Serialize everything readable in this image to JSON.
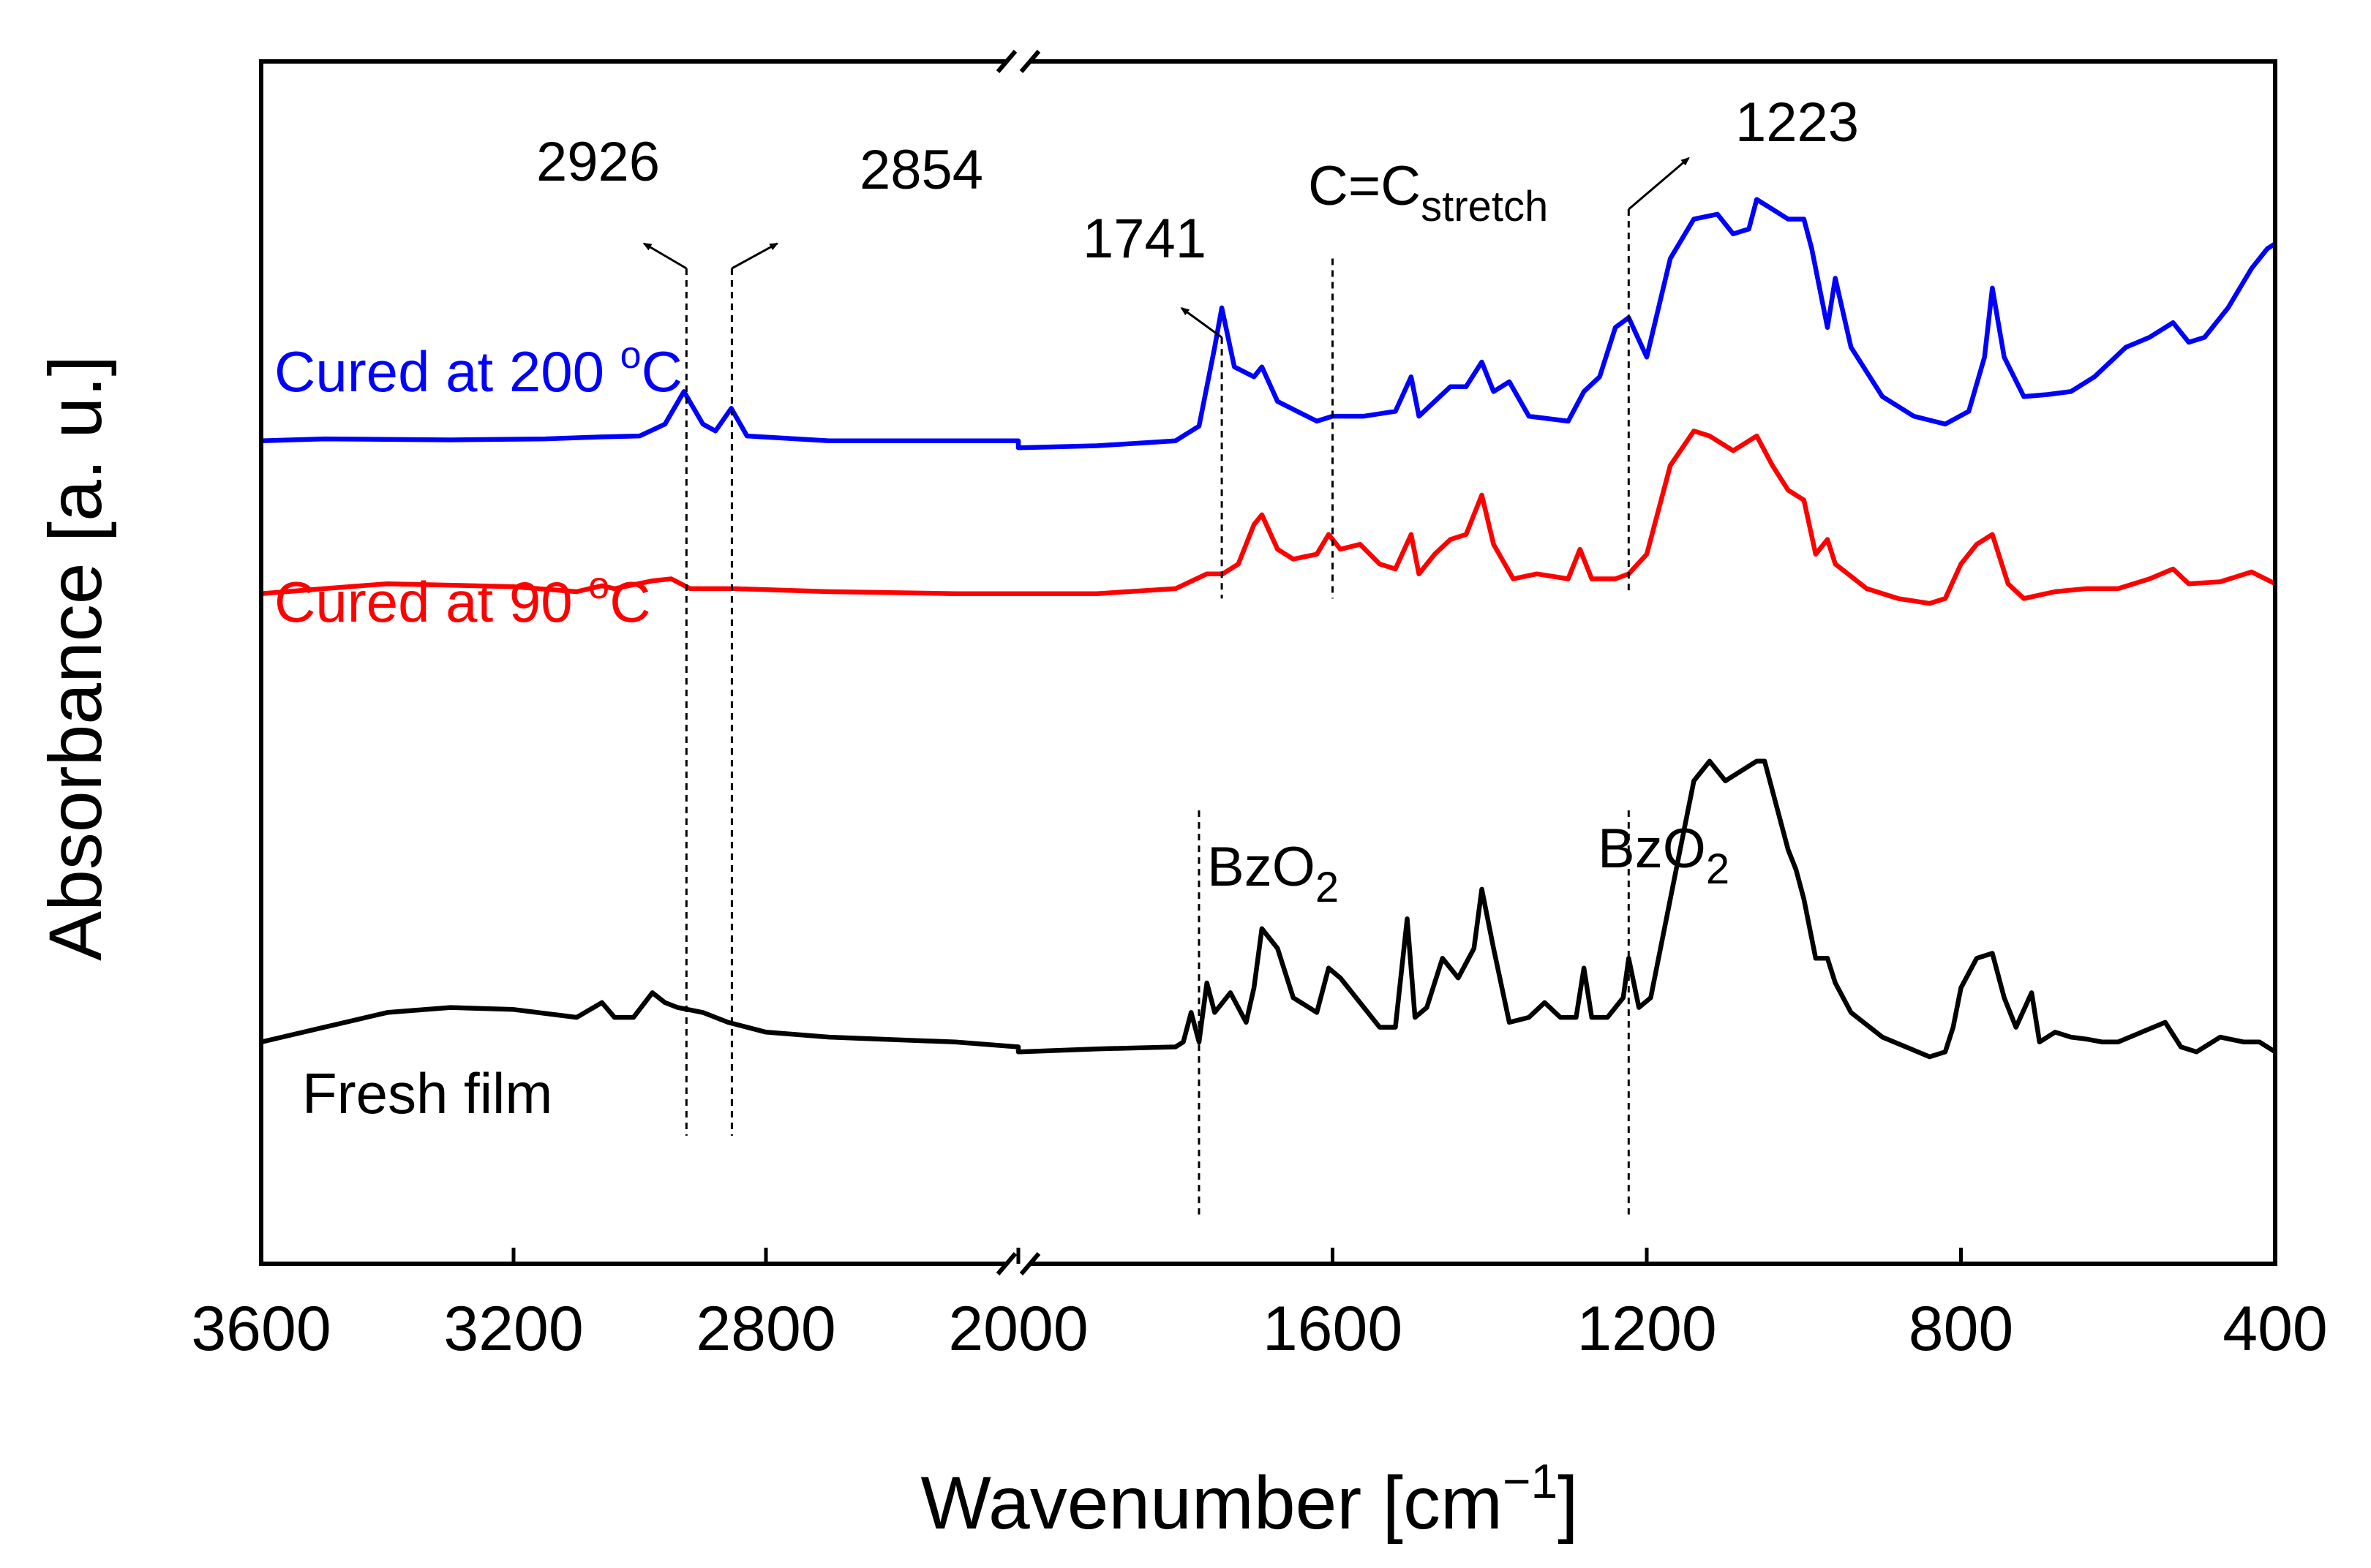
{
  "chart_data": {
    "type": "line",
    "title": "",
    "xlabel": "Wavenumber [cm−1]",
    "xlabel_main": "Wavenumber [cm",
    "xlabel_sup": "−1",
    "xlabel_close": "]",
    "ylabel": "Absorbance [a. u.]",
    "x_reversed": true,
    "x_axis_break": [
      2000,
      2400
    ],
    "x_segments": [
      {
        "xlim": [
          3600,
          2400
        ]
      },
      {
        "xlim": [
          2000,
          400
        ]
      }
    ],
    "ylim": [
      0,
      10
    ],
    "y_ticks_shown": false,
    "x_ticks": [
      "3600",
      "3200",
      "2800",
      "2000",
      "1600",
      "1200",
      "800",
      "400"
    ],
    "x_tick_values": [
      3600,
      3200,
      2800,
      2000,
      1600,
      1200,
      800,
      400
    ],
    "series": [
      {
        "name": "Cured at 200 °C",
        "label_main": "Cured at 200 ",
        "label_sup": "o",
        "label_unit": "C",
        "color": "#0000ff",
        "points": [
          [
            3600,
            6.45
          ],
          [
            3500,
            6.47
          ],
          [
            3300,
            6.46
          ],
          [
            3150,
            6.47
          ],
          [
            3060,
            6.49
          ],
          [
            3000,
            6.5
          ],
          [
            2960,
            6.62
          ],
          [
            2930,
            6.95
          ],
          [
            2900,
            6.62
          ],
          [
            2880,
            6.55
          ],
          [
            2855,
            6.78
          ],
          [
            2830,
            6.5
          ],
          [
            2700,
            6.45
          ],
          [
            2500,
            6.45
          ],
          [
            2400,
            6.45
          ],
          [
            2000,
            6.38
          ],
          [
            1900,
            6.4
          ],
          [
            1800,
            6.45
          ],
          [
            1770,
            6.6
          ],
          [
            1750,
            7.4
          ],
          [
            1741,
            7.8
          ],
          [
            1725,
            7.2
          ],
          [
            1700,
            7.1
          ],
          [
            1690,
            7.2
          ],
          [
            1670,
            6.85
          ],
          [
            1620,
            6.65
          ],
          [
            1600,
            6.7
          ],
          [
            1560,
            6.7
          ],
          [
            1520,
            6.75
          ],
          [
            1500,
            7.1
          ],
          [
            1490,
            6.7
          ],
          [
            1470,
            6.85
          ],
          [
            1450,
            7.0
          ],
          [
            1430,
            7.0
          ],
          [
            1410,
            7.25
          ],
          [
            1395,
            6.95
          ],
          [
            1375,
            7.05
          ],
          [
            1350,
            6.7
          ],
          [
            1300,
            6.65
          ],
          [
            1280,
            6.95
          ],
          [
            1260,
            7.1
          ],
          [
            1240,
            7.6
          ],
          [
            1223,
            7.7
          ],
          [
            1200,
            7.3
          ],
          [
            1170,
            8.3
          ],
          [
            1140,
            8.7
          ],
          [
            1110,
            8.75
          ],
          [
            1090,
            8.55
          ],
          [
            1070,
            8.6
          ],
          [
            1060,
            8.9
          ],
          [
            1040,
            8.8
          ],
          [
            1020,
            8.7
          ],
          [
            1000,
            8.7
          ],
          [
            990,
            8.4
          ],
          [
            970,
            7.6
          ],
          [
            960,
            8.1
          ],
          [
            940,
            7.4
          ],
          [
            900,
            6.9
          ],
          [
            860,
            6.7
          ],
          [
            820,
            6.62
          ],
          [
            790,
            6.75
          ],
          [
            770,
            7.3
          ],
          [
            760,
            8.0
          ],
          [
            745,
            7.3
          ],
          [
            720,
            6.9
          ],
          [
            690,
            6.92
          ],
          [
            660,
            6.95
          ],
          [
            630,
            7.1
          ],
          [
            590,
            7.4
          ],
          [
            560,
            7.5
          ],
          [
            530,
            7.65
          ],
          [
            510,
            7.45
          ],
          [
            490,
            7.5
          ],
          [
            460,
            7.8
          ],
          [
            430,
            8.2
          ],
          [
            410,
            8.4
          ],
          [
            400,
            8.45
          ]
        ]
      },
      {
        "name": "Cured at 90 °C",
        "label_main": "Cured at 90 ",
        "label_sup": "o",
        "label_unit": "C",
        "color": "#ff0000",
        "points": [
          [
            3600,
            4.9
          ],
          [
            3500,
            4.95
          ],
          [
            3400,
            5.0
          ],
          [
            3200,
            4.97
          ],
          [
            3100,
            4.92
          ],
          [
            3060,
            4.98
          ],
          [
            3040,
            4.95
          ],
          [
            2980,
            5.03
          ],
          [
            2950,
            5.05
          ],
          [
            2920,
            4.95
          ],
          [
            2850,
            4.95
          ],
          [
            2700,
            4.92
          ],
          [
            2500,
            4.9
          ],
          [
            2400,
            4.9
          ],
          [
            2000,
            4.9
          ],
          [
            1900,
            4.9
          ],
          [
            1800,
            4.95
          ],
          [
            1760,
            5.1
          ],
          [
            1740,
            5.1
          ],
          [
            1720,
            5.2
          ],
          [
            1700,
            5.6
          ],
          [
            1690,
            5.7
          ],
          [
            1670,
            5.35
          ],
          [
            1650,
            5.25
          ],
          [
            1620,
            5.3
          ],
          [
            1605,
            5.5
          ],
          [
            1590,
            5.35
          ],
          [
            1565,
            5.4
          ],
          [
            1540,
            5.2
          ],
          [
            1520,
            5.15
          ],
          [
            1500,
            5.5
          ],
          [
            1490,
            5.1
          ],
          [
            1470,
            5.3
          ],
          [
            1450,
            5.45
          ],
          [
            1430,
            5.5
          ],
          [
            1410,
            5.9
          ],
          [
            1395,
            5.4
          ],
          [
            1370,
            5.05
          ],
          [
            1340,
            5.1
          ],
          [
            1300,
            5.05
          ],
          [
            1285,
            5.35
          ],
          [
            1270,
            5.05
          ],
          [
            1240,
            5.05
          ],
          [
            1223,
            5.1
          ],
          [
            1200,
            5.3
          ],
          [
            1170,
            6.2
          ],
          [
            1140,
            6.55
          ],
          [
            1120,
            6.5
          ],
          [
            1090,
            6.35
          ],
          [
            1060,
            6.5
          ],
          [
            1040,
            6.2
          ],
          [
            1020,
            5.95
          ],
          [
            1000,
            5.85
          ],
          [
            985,
            5.3
          ],
          [
            970,
            5.45
          ],
          [
            960,
            5.2
          ],
          [
            920,
            4.95
          ],
          [
            880,
            4.85
          ],
          [
            840,
            4.8
          ],
          [
            820,
            4.85
          ],
          [
            800,
            5.2
          ],
          [
            780,
            5.4
          ],
          [
            760,
            5.5
          ],
          [
            740,
            5.0
          ],
          [
            720,
            4.85
          ],
          [
            680,
            4.92
          ],
          [
            640,
            4.95
          ],
          [
            600,
            4.95
          ],
          [
            560,
            5.05
          ],
          [
            530,
            5.15
          ],
          [
            510,
            5.0
          ],
          [
            470,
            5.02
          ],
          [
            430,
            5.12
          ],
          [
            400,
            5.0
          ]
        ]
      },
      {
        "name": "Fresh film",
        "color": "#000000",
        "points": [
          [
            3600,
            0.35
          ],
          [
            3500,
            0.5
          ],
          [
            3400,
            0.65
          ],
          [
            3300,
            0.7
          ],
          [
            3200,
            0.68
          ],
          [
            3100,
            0.6
          ],
          [
            3060,
            0.75
          ],
          [
            3040,
            0.6
          ],
          [
            3010,
            0.6
          ],
          [
            2980,
            0.85
          ],
          [
            2960,
            0.75
          ],
          [
            2940,
            0.7
          ],
          [
            2900,
            0.65
          ],
          [
            2860,
            0.55
          ],
          [
            2800,
            0.45
          ],
          [
            2700,
            0.4
          ],
          [
            2500,
            0.35
          ],
          [
            2400,
            0.3
          ],
          [
            2000,
            0.25
          ],
          [
            1900,
            0.28
          ],
          [
            1800,
            0.3
          ],
          [
            1790,
            0.35
          ],
          [
            1780,
            0.65
          ],
          [
            1770,
            0.35
          ],
          [
            1760,
            0.95
          ],
          [
            1750,
            0.65
          ],
          [
            1730,
            0.85
          ],
          [
            1710,
            0.55
          ],
          [
            1700,
            0.9
          ],
          [
            1690,
            1.5
          ],
          [
            1670,
            1.3
          ],
          [
            1650,
            0.8
          ],
          [
            1620,
            0.65
          ],
          [
            1605,
            1.1
          ],
          [
            1590,
            1.0
          ],
          [
            1570,
            0.8
          ],
          [
            1540,
            0.5
          ],
          [
            1520,
            0.5
          ],
          [
            1505,
            1.6
          ],
          [
            1495,
            0.6
          ],
          [
            1480,
            0.7
          ],
          [
            1460,
            1.2
          ],
          [
            1440,
            1.0
          ],
          [
            1420,
            1.3
          ],
          [
            1410,
            1.9
          ],
          [
            1395,
            1.3
          ],
          [
            1375,
            0.55
          ],
          [
            1350,
            0.6
          ],
          [
            1330,
            0.75
          ],
          [
            1310,
            0.6
          ],
          [
            1290,
            0.6
          ],
          [
            1280,
            1.1
          ],
          [
            1270,
            0.6
          ],
          [
            1250,
            0.6
          ],
          [
            1230,
            0.8
          ],
          [
            1223,
            1.2
          ],
          [
            1210,
            0.7
          ],
          [
            1195,
            0.8
          ],
          [
            1160,
            2.2
          ],
          [
            1140,
            3.0
          ],
          [
            1120,
            3.2
          ],
          [
            1100,
            3.0
          ],
          [
            1080,
            3.1
          ],
          [
            1060,
            3.2
          ],
          [
            1050,
            3.2
          ],
          [
            1040,
            2.9
          ],
          [
            1020,
            2.3
          ],
          [
            1010,
            2.1
          ],
          [
            1000,
            1.8
          ],
          [
            985,
            1.2
          ],
          [
            970,
            1.2
          ],
          [
            960,
            0.95
          ],
          [
            940,
            0.65
          ],
          [
            900,
            0.4
          ],
          [
            870,
            0.3
          ],
          [
            840,
            0.2
          ],
          [
            820,
            0.25
          ],
          [
            810,
            0.5
          ],
          [
            800,
            0.9
          ],
          [
            780,
            1.2
          ],
          [
            760,
            1.25
          ],
          [
            745,
            0.8
          ],
          [
            730,
            0.5
          ],
          [
            710,
            0.85
          ],
          [
            700,
            0.35
          ],
          [
            680,
            0.45
          ],
          [
            660,
            0.4
          ],
          [
            640,
            0.38
          ],
          [
            620,
            0.35
          ],
          [
            600,
            0.35
          ],
          [
            570,
            0.45
          ],
          [
            540,
            0.55
          ],
          [
            520,
            0.3
          ],
          [
            500,
            0.25
          ],
          [
            470,
            0.4
          ],
          [
            440,
            0.35
          ],
          [
            420,
            0.35
          ],
          [
            400,
            0.25
          ]
        ]
      }
    ],
    "annotations": [
      {
        "label": "2926",
        "x": 2926,
        "line_y": [
          -0.6,
          8.2
        ]
      },
      {
        "label": "2854",
        "x": 2854,
        "line_y": [
          -0.6,
          8.2
        ]
      },
      {
        "label": "1741",
        "x": 1741,
        "line_y": [
          4.85,
          7.5
        ]
      },
      {
        "label_main": "C=C",
        "label_sub": "stretch",
        "x": 1600,
        "line_y": [
          4.85,
          8.3
        ]
      },
      {
        "label": "1223",
        "x": 1223,
        "line_y": [
          4.9,
          8.8
        ]
      },
      {
        "label_main": "BzO",
        "label_sub": "2",
        "x": 1770,
        "line_y": [
          -1.4,
          2.7
        ]
      },
      {
        "label_main": "BzO",
        "label_sub": "2",
        "x": 1223,
        "line_y": [
          -1.4,
          2.7
        ]
      }
    ]
  }
}
